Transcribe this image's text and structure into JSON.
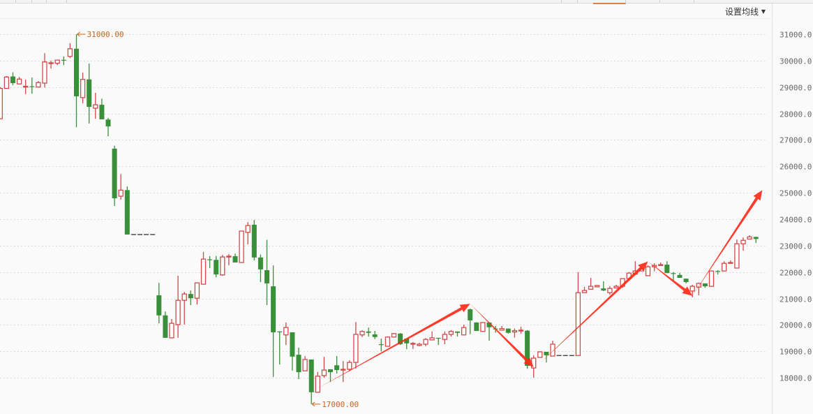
{
  "toolbar": {
    "ma_settings_label": "设置均线",
    "ma_dropdown_icon": "caret-down-icon"
  },
  "colors": {
    "up": "#d04a4a",
    "down": "#3a8f3a",
    "grid": "#cfcfcf",
    "annotation": "#ff2a1a",
    "extreme_label": "#c8641e",
    "suspended": "#333333"
  },
  "chart_data": {
    "type": "candlestick",
    "title": "",
    "xlabel": "",
    "ylabel": "",
    "ylim": [
      17000,
      31000
    ],
    "y_ticks": [
      "18000.0",
      "19000.0",
      "20000.0",
      "21000.0",
      "22000.0",
      "23000.0",
      "24000.0",
      "25000.0",
      "26000.0",
      "27000.0",
      "28000.0",
      "29000.0",
      "30000.0",
      "31000.0"
    ],
    "grid": true,
    "grid_style": "dotted horizontal",
    "up_style": "hollow red",
    "down_style": "filled green",
    "max_label": "31000.00",
    "min_label": "17000.00",
    "max_index": 12,
    "min_index": 49,
    "suspended_indices": [
      21,
      22,
      23,
      24,
      88,
      89,
      90
    ],
    "candles_ohlc": [
      [
        27800,
        29000,
        27800,
        28950
      ],
      [
        28950,
        29420,
        28950,
        29380
      ],
      [
        29400,
        29560,
        29070,
        29150
      ],
      [
        29120,
        29380,
        29100,
        29300
      ],
      [
        29020,
        29280,
        28730,
        29030
      ],
      [
        29030,
        29360,
        28750,
        29000
      ],
      [
        29000,
        29230,
        29000,
        29170
      ],
      [
        29150,
        30280,
        28980,
        29950
      ],
      [
        29900,
        30000,
        29700,
        29920
      ],
      [
        29900,
        30020,
        29830,
        30020
      ],
      [
        30030,
        30160,
        29830,
        30000
      ],
      [
        30160,
        30660,
        30100,
        30450
      ],
      [
        30450,
        31000,
        27480,
        28650
      ],
      [
        28600,
        29550,
        28380,
        29290
      ],
      [
        29290,
        29890,
        27620,
        28250
      ],
      [
        28200,
        28780,
        27800,
        28330
      ],
      [
        28330,
        28560,
        27780,
        27780
      ],
      [
        27770,
        27830,
        27140,
        27510
      ],
      [
        26670,
        26780,
        24500,
        24790
      ],
      [
        24870,
        25710,
        24740,
        25100
      ],
      [
        25100,
        25240,
        23420,
        23420
      ],
      [
        23420,
        23420,
        23420,
        23420
      ],
      [
        23420,
        23420,
        23420,
        23420
      ],
      [
        23420,
        23420,
        23420,
        23420
      ],
      [
        23420,
        23420,
        23420,
        23420
      ],
      [
        21120,
        21590,
        20060,
        20360
      ],
      [
        20360,
        20510,
        19510,
        19510
      ],
      [
        19510,
        20220,
        19510,
        20060
      ],
      [
        20010,
        21860,
        19510,
        20930
      ],
      [
        20930,
        21250,
        20010,
        21170
      ],
      [
        21170,
        21300,
        20750,
        21010
      ],
      [
        21010,
        21590,
        20770,
        21590
      ],
      [
        21540,
        22760,
        21540,
        22490
      ],
      [
        22480,
        22600,
        22150,
        22460
      ],
      [
        22460,
        22610,
        21800,
        21910
      ],
      [
        21890,
        22650,
        21860,
        22570
      ],
      [
        22570,
        22680,
        22250,
        22600
      ],
      [
        22600,
        22700,
        22360,
        22360
      ],
      [
        22360,
        23550,
        22360,
        23550
      ],
      [
        23500,
        23890,
        23050,
        23760
      ],
      [
        23790,
        23970,
        22440,
        22550
      ],
      [
        22550,
        22660,
        21620,
        22100
      ],
      [
        22070,
        23220,
        20750,
        21570
      ],
      [
        21460,
        22250,
        18030,
        19720
      ],
      [
        19750,
        19760,
        18500,
        19740
      ],
      [
        19620,
        20090,
        19240,
        19900
      ],
      [
        19720,
        19720,
        18270,
        18800
      ],
      [
        18870,
        19140,
        17950,
        18210
      ],
      [
        18260,
        18820,
        18260,
        18690
      ],
      [
        18690,
        18690,
        17000,
        17450
      ],
      [
        17450,
        18220,
        17450,
        18060
      ],
      [
        18080,
        18790,
        18000,
        18290
      ],
      [
        18320,
        18320,
        17840,
        18210
      ],
      [
        18470,
        18820,
        18160,
        18290
      ],
      [
        18290,
        18630,
        17840,
        18320
      ],
      [
        18320,
        18660,
        18240,
        18580
      ],
      [
        18580,
        20110,
        18340,
        19640
      ],
      [
        19620,
        19800,
        19540,
        19750
      ],
      [
        19750,
        19900,
        19560,
        19700
      ],
      [
        19640,
        19770,
        19460,
        19540
      ],
      [
        19270,
        19480,
        19000,
        19260
      ],
      [
        19190,
        19560,
        19190,
        19540
      ],
      [
        19540,
        19690,
        19540,
        19670
      ],
      [
        19670,
        19690,
        19240,
        19270
      ],
      [
        19480,
        19480,
        19080,
        19300
      ],
      [
        19300,
        19350,
        19090,
        19300
      ],
      [
        19220,
        19320,
        19190,
        19270
      ],
      [
        19270,
        19500,
        19190,
        19450
      ],
      [
        19430,
        19750,
        19430,
        19510
      ],
      [
        19510,
        19510,
        19240,
        19480
      ],
      [
        19450,
        19750,
        19270,
        19640
      ],
      [
        19640,
        19800,
        19560,
        19750
      ],
      [
        19750,
        19750,
        19560,
        19700
      ],
      [
        19620,
        20010,
        19620,
        19900
      ],
      [
        20590,
        20620,
        19650,
        20170
      ],
      [
        20090,
        20100,
        19770,
        19770
      ],
      [
        19750,
        20100,
        19750,
        20090
      ],
      [
        20090,
        20100,
        19400,
        19910
      ],
      [
        19860,
        19960,
        19700,
        19850
      ],
      [
        19800,
        19960,
        19800,
        19860
      ],
      [
        19860,
        19860,
        19670,
        19700
      ],
      [
        19730,
        19860,
        19520,
        19780
      ],
      [
        19800,
        19930,
        19670,
        19800
      ],
      [
        19780,
        19800,
        18340,
        18450
      ],
      [
        18370,
        18850,
        18000,
        18740
      ],
      [
        18770,
        19000,
        18770,
        18980
      ],
      [
        18980,
        18980,
        18580,
        18850
      ],
      [
        18820,
        19400,
        18820,
        19270
      ],
      [
        18840,
        18840,
        18840,
        18840
      ],
      [
        18840,
        18840,
        18840,
        18840
      ],
      [
        18840,
        18840,
        18840,
        18840
      ],
      [
        18840,
        22000,
        18840,
        21220
      ],
      [
        21220,
        21440,
        21220,
        21300
      ],
      [
        21350,
        21780,
        21330,
        21460
      ],
      [
        21440,
        21520,
        21440,
        21490
      ],
      [
        21380,
        21650,
        21280,
        21300
      ],
      [
        21220,
        21460,
        21140,
        21380
      ],
      [
        21400,
        21520,
        21380,
        21460
      ],
      [
        21460,
        21760,
        21400,
        21750
      ],
      [
        21750,
        22000,
        21700,
        21960
      ],
      [
        21920,
        22410,
        21900,
        22040
      ],
      [
        22040,
        22200,
        22040,
        22120
      ],
      [
        21860,
        22250,
        21860,
        22200
      ],
      [
        22200,
        22330,
        22030,
        22250
      ],
      [
        22260,
        22360,
        22230,
        22280
      ],
      [
        22280,
        22410,
        21960,
        21960
      ],
      [
        21960,
        22000,
        21670,
        21940
      ],
      [
        21890,
        21970,
        21780,
        21780
      ],
      [
        21750,
        21750,
        21570,
        21620
      ],
      [
        21280,
        21520,
        21040,
        21460
      ],
      [
        21430,
        21600,
        21120,
        21570
      ],
      [
        21570,
        21570,
        21400,
        21460
      ],
      [
        21460,
        22040,
        21460,
        22040
      ],
      [
        22040,
        22070,
        21910,
        22030
      ],
      [
        22040,
        22410,
        22040,
        22330
      ],
      [
        22340,
        22440,
        22330,
        22360
      ],
      [
        22150,
        23230,
        22150,
        23070
      ],
      [
        23070,
        23310,
        22810,
        23200
      ],
      [
        23250,
        23390,
        23250,
        23330
      ],
      [
        23330,
        23330,
        23100,
        23250
      ]
    ],
    "trend_arrows": [
      {
        "from": [
          50,
          17600
        ],
        "to": [
          74,
          20800
        ]
      },
      {
        "from": [
          74,
          20800
        ],
        "to": [
          84,
          18400
        ]
      },
      {
        "from": [
          85,
          18550
        ],
        "to": [
          102,
          22400
        ]
      },
      {
        "from": [
          102,
          22400
        ],
        "to": [
          109,
          21100
        ]
      },
      {
        "from": [
          109,
          21100
        ],
        "to": [
          120,
          25100
        ]
      }
    ]
  }
}
